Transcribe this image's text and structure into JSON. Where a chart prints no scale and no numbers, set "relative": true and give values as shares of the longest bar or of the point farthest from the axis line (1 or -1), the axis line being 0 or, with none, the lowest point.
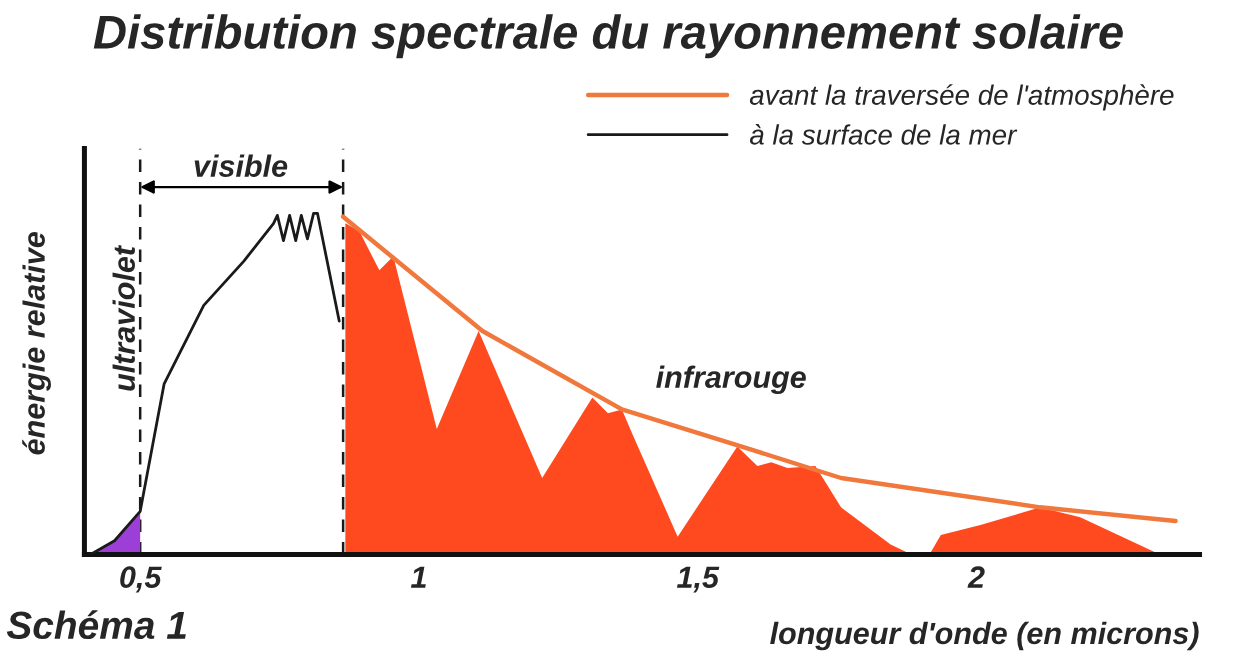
{
  "chart_data": {
    "type": "line",
    "title": "Distribution spectrale du rayonnement solaire",
    "xlabel": "longueur d'onde (en microns)",
    "ylabel": "énergie relative",
    "relative": true,
    "xlim": [
      0.4,
      2.4
    ],
    "xticks": [
      {
        "value": 0.5,
        "label": "0,5"
      },
      1,
      {
        "value": 1.5,
        "label": "1,5"
      },
      2
    ],
    "series": [
      {
        "name": "avant la traversée de l'atmosphère",
        "color": "#f0783c",
        "x": [
          0.864,
          1.114,
          1.364,
          1.579,
          1.757,
          2.114,
          2.357
        ],
        "values": [
          0.99,
          0.655,
          0.425,
          0.316,
          0.224,
          0.138,
          0.098
        ]
      },
      {
        "name": "à la surface de la mer",
        "color": "#1a1a1a",
        "x": [
          0.411,
          0.454,
          0.5,
          0.543,
          0.614,
          0.686,
          0.739,
          0.746,
          0.757,
          0.768,
          0.779,
          0.789,
          0.8,
          0.811,
          0.818,
          0.857
        ],
        "values": [
          0,
          0.04,
          0.126,
          0.5,
          0.73,
          0.86,
          0.97,
          0.994,
          0.92,
          0.994,
          0.92,
          0.994,
          0.925,
          1.0,
          1.0,
          0.684
        ]
      },
      {
        "type": "area",
        "color": "#9b3fd6",
        "x": [
          0.411,
          0.454,
          0.5
        ],
        "values": [
          0,
          0.04,
          0.126
        ]
      },
      {
        "type": "area",
        "color": "#ff4a1f",
        "x": [
          0.868,
          0.893,
          0.929,
          0.954,
          1.032,
          1.107,
          1.221,
          1.311,
          1.339,
          1.364,
          1.382,
          1.464,
          1.571,
          1.607,
          1.632,
          1.661,
          1.711,
          1.757,
          1.846,
          1.875,
          1.918,
          1.936,
          2.007,
          2.114,
          2.186,
          2.329
        ],
        "values": [
          0.971,
          0.948,
          0.833,
          0.874,
          0.368,
          0.655,
          0.224,
          0.46,
          0.414,
          0.425,
          0.356,
          0.052,
          0.316,
          0.259,
          0.27,
          0.253,
          0.259,
          0.138,
          0.029,
          0.006,
          0.006,
          0.057,
          0.086,
          0.138,
          0.109,
          0
        ]
      }
    ],
    "ref_lines": [
      {
        "axis": "x",
        "value": 0.5,
        "line_style": "dashed",
        "color": "#1a1a1a"
      },
      {
        "axis": "x",
        "value": 0.864,
        "line_style": "dashed",
        "color": "#1a1a1a"
      }
    ],
    "annotations": [
      "ultraviolet",
      "visible",
      "infrarouge",
      "Schéma 1"
    ],
    "legend": "top right",
    "grid": false
  }
}
